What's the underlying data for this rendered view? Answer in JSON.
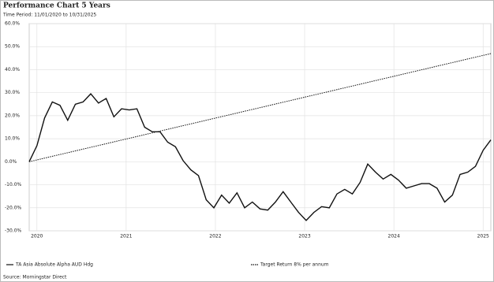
{
  "chart_data": {
    "type": "line",
    "title": "Performance Chart 5 Years",
    "subtitle": "Time Period: 11/01/2020 to 10/31/2025",
    "source": "Source: Morningstar Direct",
    "xlim": [
      0,
      60
    ],
    "xticks": [
      {
        "value": 1,
        "label": "2020"
      },
      {
        "value": 12.6,
        "label": "2021"
      },
      {
        "value": 24.2,
        "label": "2022"
      },
      {
        "value": 35.8,
        "label": "2023"
      },
      {
        "value": 47.4,
        "label": "2024"
      },
      {
        "value": 59,
        "label": "2025"
      }
    ],
    "ylim": [
      -30,
      60
    ],
    "yticks": [
      {
        "value": -30,
        "label": "-30.0%"
      },
      {
        "value": -20,
        "label": "-20.0%"
      },
      {
        "value": -10,
        "label": "-10.0%"
      },
      {
        "value": 0,
        "label": "0.0%"
      },
      {
        "value": 10,
        "label": "10.0%"
      },
      {
        "value": 20,
        "label": "20.0%"
      },
      {
        "value": 30,
        "label": "30.0%"
      },
      {
        "value": 40,
        "label": "40.0%"
      },
      {
        "value": 50,
        "label": "50.0%"
      },
      {
        "value": 60,
        "label": "60.0%"
      }
    ],
    "grid": true,
    "series": [
      {
        "name": "TA Asia Absolute Alpha AUD Hdg",
        "color": "#111111",
        "dash": false,
        "x": [
          0,
          1,
          2,
          3,
          4,
          5,
          6,
          7,
          8,
          9,
          10,
          11,
          12,
          13,
          14,
          15,
          16,
          17,
          18,
          19,
          20,
          21,
          22,
          23,
          24,
          25,
          26,
          27,
          28,
          29,
          30,
          31,
          32,
          33,
          34,
          35,
          36,
          37,
          38,
          39,
          40,
          41,
          42,
          43,
          44,
          45,
          46,
          47,
          48,
          49,
          50,
          51,
          52,
          53,
          54,
          55,
          56,
          57,
          58,
          59,
          60
        ],
        "values": [
          0,
          7,
          19,
          26,
          24.5,
          18,
          25,
          26,
          29.5,
          25.5,
          27.5,
          19.5,
          23,
          22.5,
          23,
          15,
          13,
          13,
          8.5,
          6.5,
          0.5,
          -3.5,
          -6,
          -16.5,
          -20,
          -14.5,
          -18,
          -13.5,
          -20,
          -17.5,
          -20.5,
          -21,
          -17.5,
          -13,
          -17.5,
          -22,
          -25.5,
          -22,
          -19.5,
          -20,
          -14,
          -12,
          -14,
          -9,
          -1,
          -4.5,
          -7.5,
          -5.5,
          -8,
          -11.5,
          -10.5,
          -9.5,
          -9.5,
          -11.5,
          -17.5,
          -14.5,
          -5.5,
          -4.5,
          -2,
          5,
          9.5
        ]
      },
      {
        "name": "Target Return 8% per annum",
        "color": "#111111",
        "dash": true,
        "x": [
          0,
          60
        ],
        "values": [
          0,
          47
        ]
      }
    ]
  }
}
